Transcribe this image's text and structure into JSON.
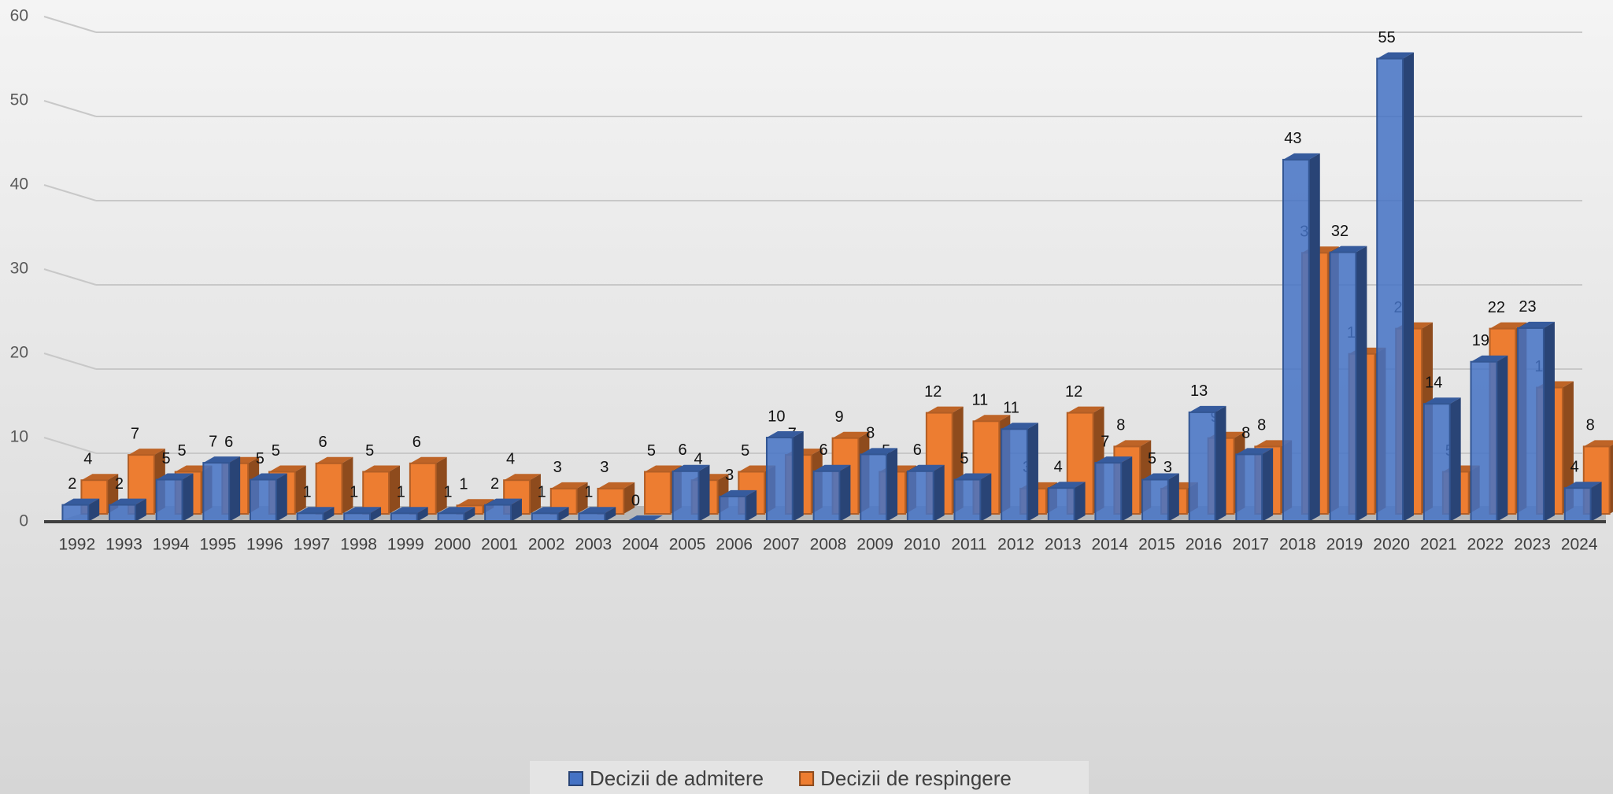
{
  "chart_data": {
    "type": "bar3d",
    "categories": [
      "1992",
      "1993",
      "1994",
      "1995",
      "1996",
      "1997",
      "1998",
      "1999",
      "2000",
      "2001",
      "2002",
      "2003",
      "2004",
      "2005",
      "2006",
      "2007",
      "2008",
      "2009",
      "2010",
      "2011",
      "2012",
      "2013",
      "2014",
      "2015",
      "2016",
      "2017",
      "2018",
      "2019",
      "2020",
      "2021",
      "2022",
      "2023",
      "2024"
    ],
    "series": [
      {
        "name": "Decizii de respingere",
        "color": "#ed7d31",
        "depth": "back",
        "values": [
          4,
          7,
          5,
          6,
          5,
          6,
          5,
          6,
          1,
          4,
          3,
          3,
          5,
          4,
          5,
          7,
          9,
          5,
          12,
          11,
          3,
          12,
          8,
          3,
          9,
          8,
          31,
          19,
          22,
          5,
          22,
          15,
          8
        ]
      },
      {
        "name": "Decizii de admitere",
        "color": "#4472c4",
        "depth": "front",
        "values": [
          2,
          2,
          5,
          7,
          5,
          1,
          1,
          1,
          1,
          2,
          1,
          1,
          0,
          6,
          3,
          10,
          6,
          8,
          6,
          5,
          11,
          4,
          7,
          5,
          13,
          8,
          43,
          32,
          55,
          14,
          19,
          23,
          4
        ]
      }
    ],
    "legend_order": [
      1,
      0
    ],
    "ylim": [
      0,
      60
    ],
    "yticks": [
      0,
      10,
      20,
      30,
      40,
      50,
      60
    ],
    "grid": true,
    "legend": "bottom"
  }
}
